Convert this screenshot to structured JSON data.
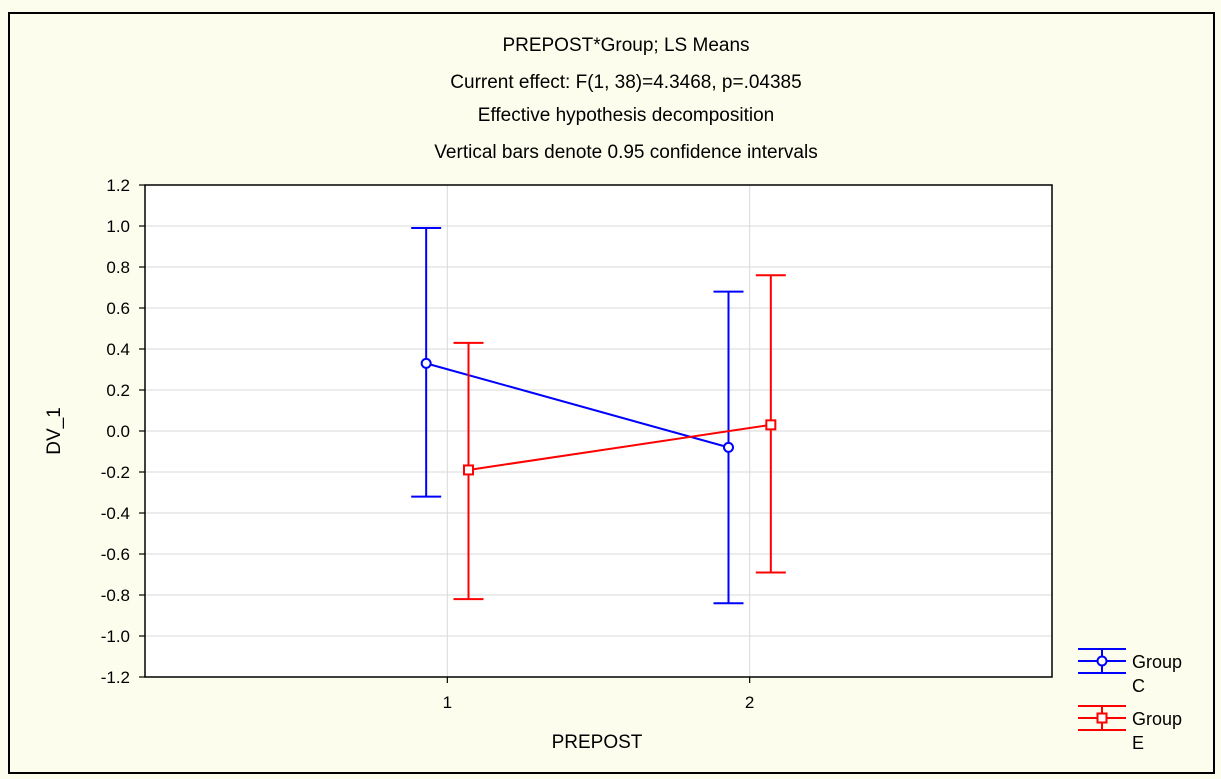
{
  "chart_data": {
    "type": "line",
    "title_lines": [
      "PREPOST*Group; LS Means",
      "Current effect: F(1, 38)=4.3468, p=.04385",
      "Effective hypothesis decomposition",
      "Vertical bars denote 0.95 confidence intervals"
    ],
    "xlabel": "PREPOST",
    "ylabel": "DV_1",
    "categories": [
      "1",
      "2"
    ],
    "xlim": [
      0,
      3
    ],
    "ylim": [
      -1.2,
      1.2
    ],
    "yticks": [
      "1.2",
      "1.0",
      "0.8",
      "0.6",
      "0.4",
      "0.2",
      "0.0",
      "-0.2",
      "-0.4",
      "-0.6",
      "-0.8",
      "-1.0",
      "-1.2"
    ],
    "grid": true,
    "legend_position": "right-bottom, outside plot",
    "series": [
      {
        "name_lines": [
          "Group",
          "C"
        ],
        "color": "#0000ff",
        "marker": "circle",
        "values": [
          0.33,
          -0.08
        ],
        "ci_lower": [
          -0.32,
          -0.84
        ],
        "ci_upper": [
          0.99,
          0.68
        ]
      },
      {
        "name_lines": [
          "Group",
          "E"
        ],
        "color": "#ff0000",
        "marker": "square",
        "values": [
          -0.19,
          0.03
        ],
        "ci_lower": [
          -0.82,
          -0.69
        ],
        "ci_upper": [
          0.43,
          0.76
        ]
      }
    ]
  },
  "colors": {
    "background": "#fdfded",
    "plot_background": "#ffffff",
    "grid": "#d9d9d9"
  }
}
